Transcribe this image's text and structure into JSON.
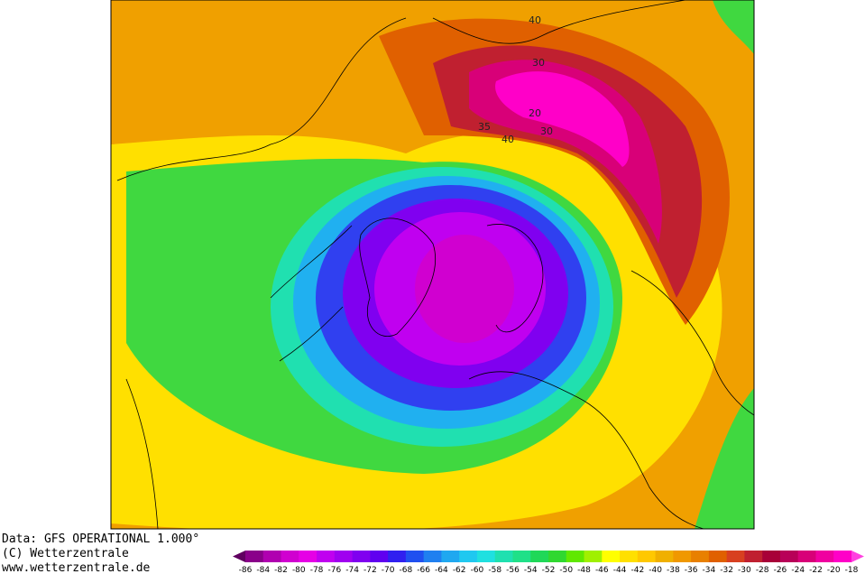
{
  "map": {
    "contour_labels": [
      "40",
      "30",
      "20",
      "35",
      "40",
      "30"
    ],
    "credits": [
      "Data: GFS OPERATIONAL 1.000°",
      "(C) Wetterzentrale",
      "www.wetterzentrale.de"
    ],
    "legend": {
      "labels": [
        "-86",
        "-84",
        "-82",
        "-80",
        "-78",
        "-76",
        "-74",
        "-72",
        "-70",
        "-68",
        "-66",
        "-64",
        "-62",
        "-60",
        "-58",
        "-56",
        "-54",
        "-52",
        "-50",
        "-48",
        "-46",
        "-44",
        "-42",
        "-40",
        "-38",
        "-36",
        "-34",
        "-32",
        "-30",
        "-28",
        "-26",
        "-24",
        "-22",
        "-20",
        "-18"
      ],
      "colors": [
        "#600060",
        "#8a008a",
        "#b000b0",
        "#d000d0",
        "#e600e6",
        "#c000f0",
        "#a000f0",
        "#8000f0",
        "#6000f0",
        "#3020f0",
        "#2050f0",
        "#2080f0",
        "#20a8f0",
        "#20c8f0",
        "#20e0e0",
        "#20e0b0",
        "#20e088",
        "#20d858",
        "#30d830",
        "#60e800",
        "#a0f000",
        "#ffff00",
        "#ffe000",
        "#ffc800",
        "#f0b000",
        "#f09800",
        "#e88000",
        "#e06000",
        "#d84020",
        "#c02030",
        "#a80038",
        "#b80058",
        "#d80078",
        "#f000a0",
        "#ff00c8",
        "#ff40e0"
      ]
    }
  }
}
